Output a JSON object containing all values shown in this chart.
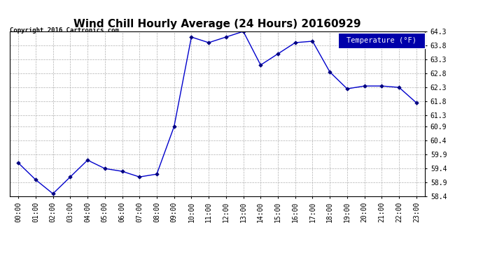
{
  "title": "Wind Chill Hourly Average (24 Hours) 20160929",
  "copyright": "Copyright 2016 Cartronics.com",
  "legend_label": "Temperature (°F)",
  "x_labels": [
    "00:00",
    "01:00",
    "02:00",
    "03:00",
    "04:00",
    "05:00",
    "06:00",
    "07:00",
    "08:00",
    "09:00",
    "10:00",
    "11:00",
    "12:00",
    "13:00",
    "14:00",
    "15:00",
    "16:00",
    "17:00",
    "18:00",
    "19:00",
    "20:00",
    "21:00",
    "22:00",
    "23:00"
  ],
  "y_values": [
    59.6,
    59.0,
    58.5,
    59.1,
    59.7,
    59.4,
    59.3,
    59.1,
    59.2,
    60.9,
    64.1,
    63.9,
    64.1,
    64.3,
    63.1,
    63.5,
    63.9,
    63.95,
    62.85,
    62.25,
    62.35,
    62.35,
    62.3,
    61.75
  ],
  "ylim": [
    58.4,
    64.3
  ],
  "yticks": [
    58.4,
    58.9,
    59.4,
    59.9,
    60.4,
    60.9,
    61.3,
    61.8,
    62.3,
    62.8,
    63.3,
    63.8,
    64.3
  ],
  "line_color": "#0000cc",
  "marker_color": "#000080",
  "bg_color": "#ffffff",
  "grid_color": "#b0b0b0",
  "title_fontsize": 11,
  "copyright_fontsize": 6.5,
  "tick_fontsize": 7,
  "legend_bg": "#0000aa",
  "legend_text_color": "#ffffff",
  "legend_fontsize": 7.5
}
